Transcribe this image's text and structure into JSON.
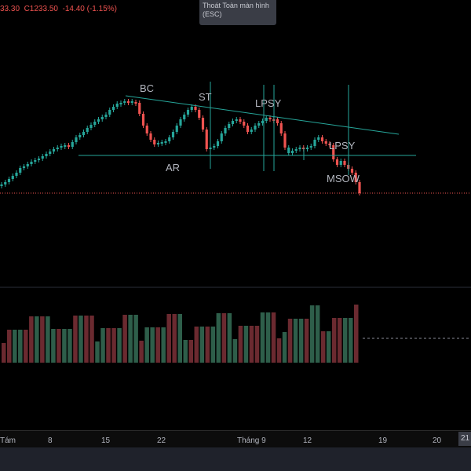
{
  "header": {
    "ohlc_text": "33.30  C1233.50  -14.40 (-1.15%)"
  },
  "exit_tooltip": {
    "line1": "Thoát Toàn màn hình",
    "line2": "(ESC)"
  },
  "colors": {
    "up": "#26a69a",
    "down": "#ef5350",
    "trendline": "#26a69a",
    "price_line": "#ef5350",
    "vol_up": "#2e5e4a",
    "vol_down": "#6b2a30",
    "annotation": "#b2b5be"
  },
  "time_axis": {
    "labels": [
      "Tám",
      "8",
      "15",
      "22",
      "Tháng 9",
      "12",
      "19",
      "20"
    ],
    "current_date_box": "21"
  },
  "chart_data": {
    "type": "candlestick",
    "annotations": [
      "BC",
      "ST",
      "LPSY",
      "AR",
      "LPSY",
      "MSOW"
    ],
    "last_close": 1233.5,
    "change": -14.4,
    "change_pct": -1.15,
    "grid": false,
    "has_volume_panel": true,
    "volume_bars": 65
  }
}
